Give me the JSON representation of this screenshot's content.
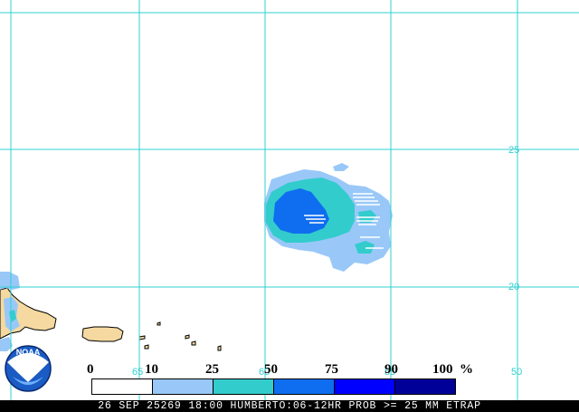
{
  "map": {
    "grid_color": "#30d0d0",
    "land_color": "#f5d9a0",
    "lat_labels": [
      "25",
      "20"
    ],
    "lon_labels": [
      "65",
      "60",
      "55",
      "50"
    ]
  },
  "legend": {
    "labels": [
      "0",
      "10",
      "25",
      "50",
      "75",
      "90",
      "100"
    ],
    "unit": "%",
    "colors": [
      "#ffffff",
      "#99c8f8",
      "#33cccc",
      "#0f6ef0",
      "#0000ff",
      "#000099"
    ]
  },
  "logo": {
    "text": "NOAA",
    "icon": "noaa-logo-icon"
  },
  "footer": {
    "text": "26 SEP 25269 18:00 HUMBERTO:06-12HR PROB >= 25 MM ETRAP"
  }
}
